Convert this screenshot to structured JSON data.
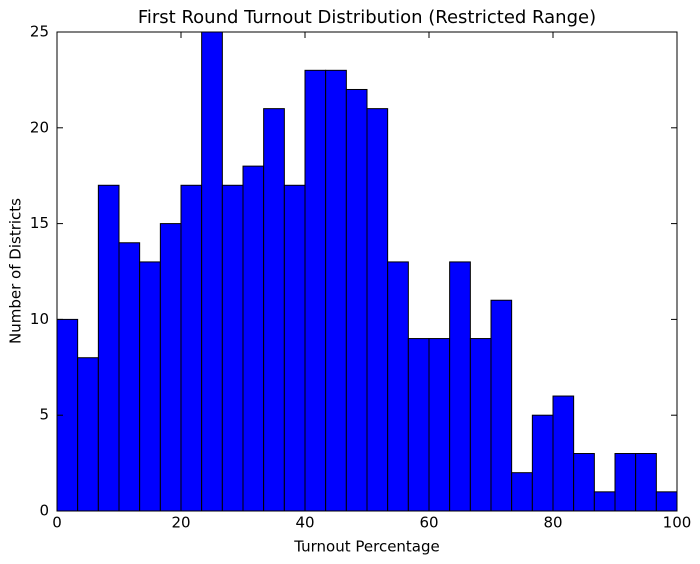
{
  "chart_data": {
    "type": "histogram",
    "title": "First Round Turnout Distribution (Restricted Range)",
    "xlabel": "Turnout Percentage",
    "ylabel": "Number of Districts",
    "bins": [
      0,
      3.33,
      6.67,
      10,
      13.33,
      16.67,
      20,
      23.33,
      26.67,
      30,
      33.33,
      36.67,
      40,
      43.33,
      46.67,
      50,
      53.33,
      56.67,
      60,
      63.33,
      66.67,
      70,
      73.33,
      76.67,
      80,
      83.33,
      86.67,
      90,
      93.33,
      96.67,
      100
    ],
    "values": [
      10,
      8,
      17,
      14,
      13,
      15,
      17,
      25,
      17,
      18,
      21,
      17,
      23,
      23,
      22,
      21,
      13,
      9,
      9,
      13,
      9,
      11,
      2,
      5,
      6,
      3,
      1,
      3,
      3,
      1
    ],
    "color": "#0000ff",
    "xlim": [
      0,
      100
    ],
    "xticks": [
      0,
      20,
      40,
      60,
      80,
      100
    ],
    "ylim": [
      0,
      25
    ],
    "yticks": [
      0,
      5,
      10,
      15,
      20,
      25
    ]
  }
}
